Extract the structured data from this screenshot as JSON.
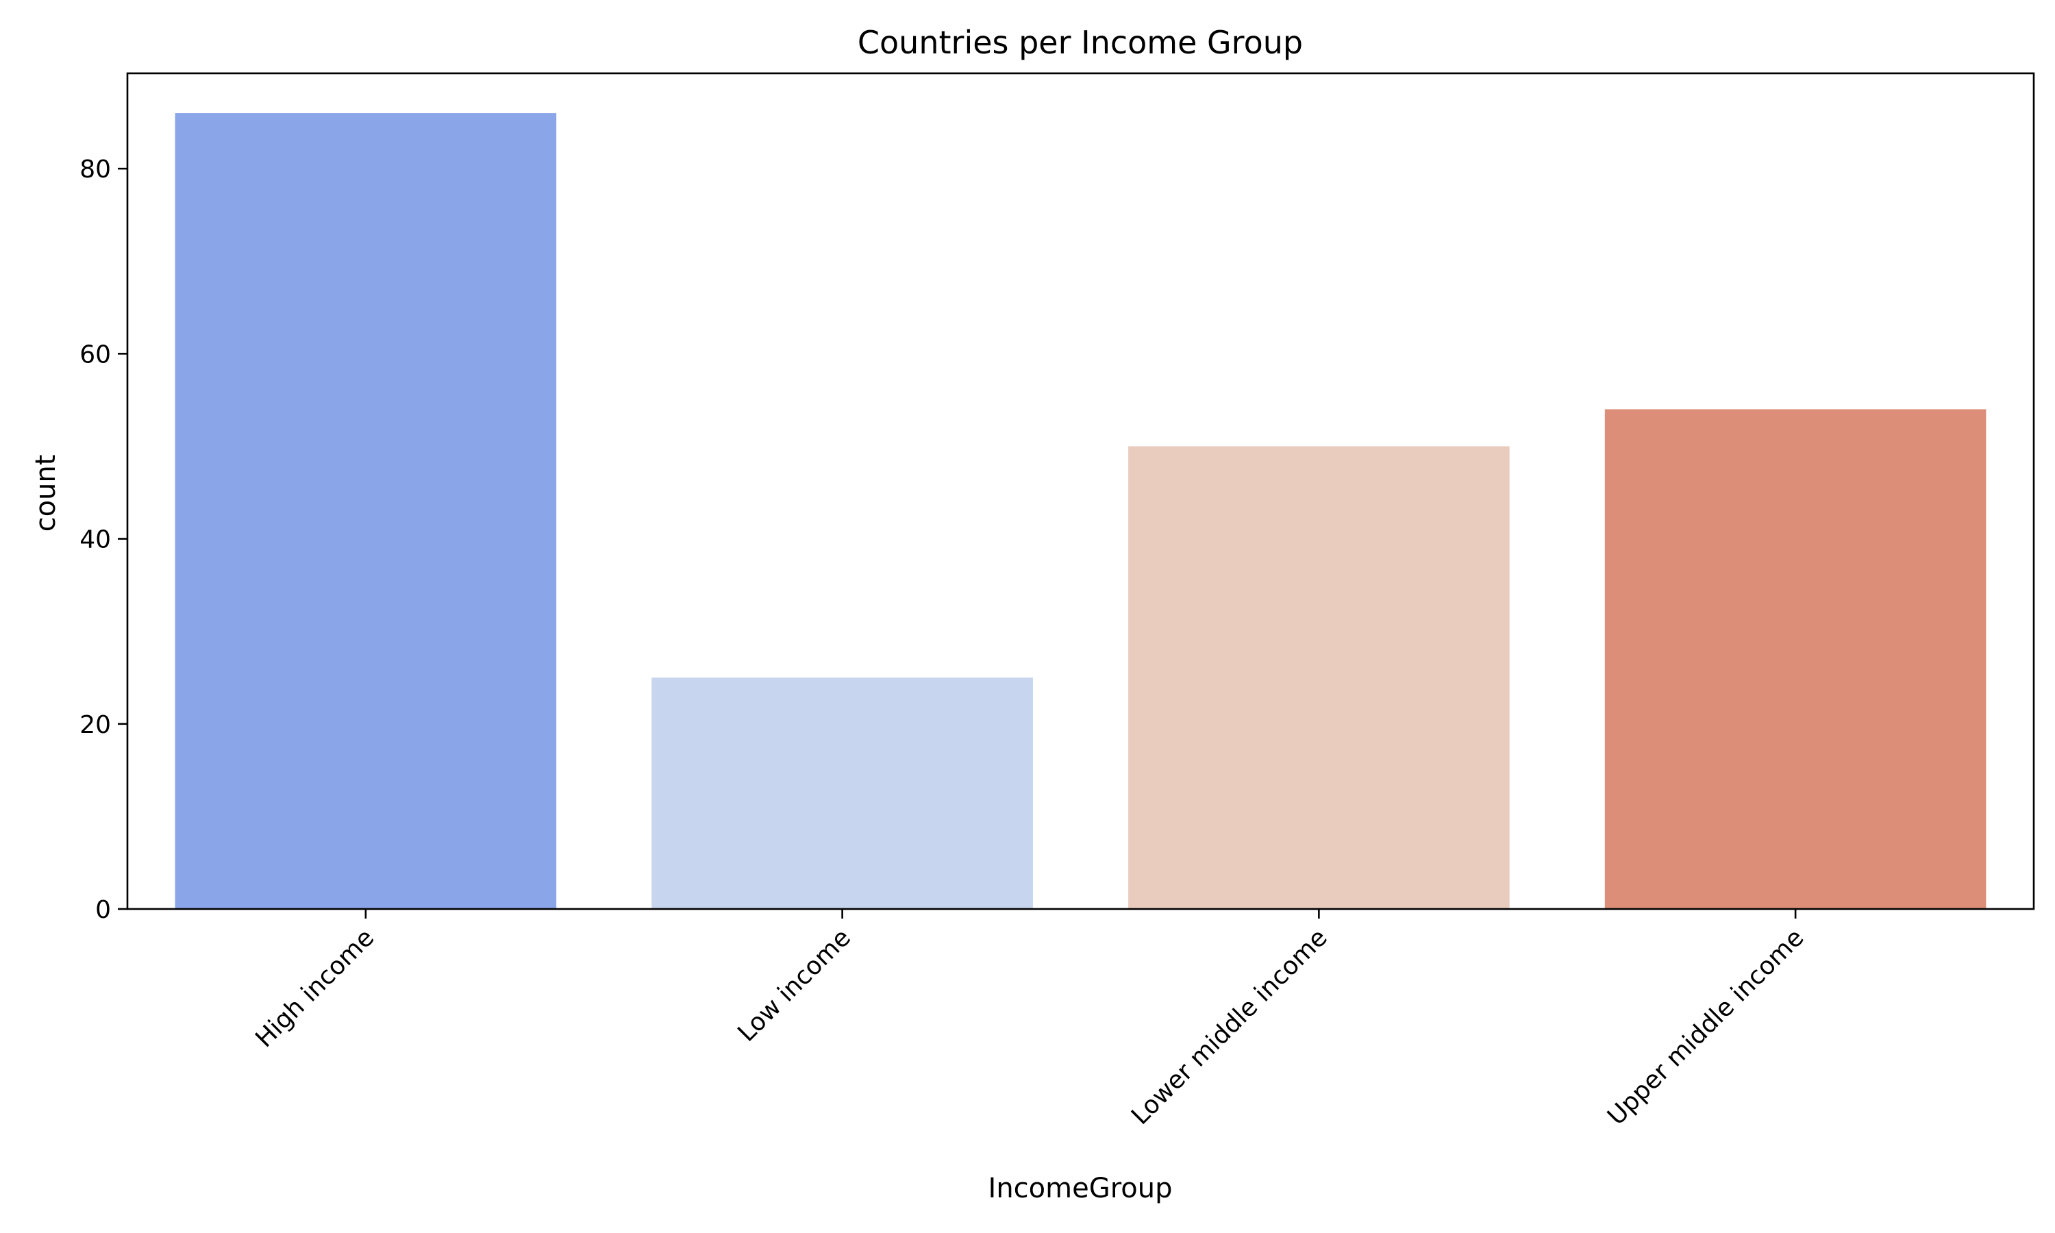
{
  "chart_data": {
    "type": "bar",
    "title": "Countries per Income Group",
    "xlabel": "IncomeGroup",
    "ylabel": "count",
    "categories": [
      "High income",
      "Low income",
      "Lower middle income",
      "Upper middle income"
    ],
    "values": [
      86,
      25,
      50,
      54
    ],
    "colors": [
      "#8aa6e8",
      "#c7d5ef",
      "#eaccbf",
      "#dc8e78"
    ],
    "ylim": [
      0,
      90.3
    ],
    "yticks": [
      0,
      20,
      40,
      60,
      80
    ],
    "grid": false,
    "legend": "none",
    "x_tick_rotation_deg": -45
  }
}
